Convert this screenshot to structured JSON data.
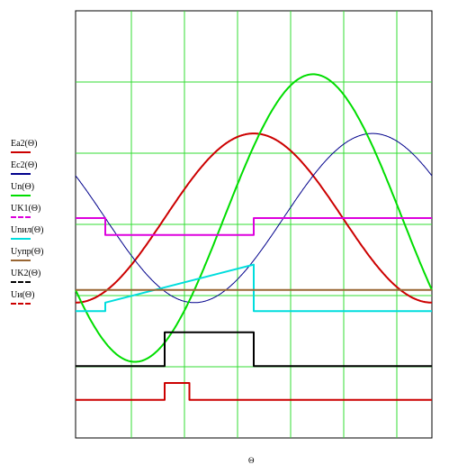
{
  "chart_data": {
    "type": "line",
    "xlabel": "Θ",
    "grid": true,
    "x_divisions": 6,
    "y_divisions": 6,
    "series": [
      {
        "name": "Ea2(Θ)",
        "color": "#cc0000",
        "style": "solid",
        "kind": "sine",
        "amp": 1.0,
        "phase_deg": -90,
        "offset": 0
      },
      {
        "name": "Ec2(Θ)",
        "color": "#00008b",
        "style": "solid",
        "kind": "sine",
        "amp": 1.0,
        "phase_deg": 150,
        "offset": 0
      },
      {
        "name": "Un(Θ)",
        "color": "#00dd00",
        "style": "solid",
        "kind": "sine",
        "amp": 1.7,
        "phase_deg": -150,
        "offset": 0
      },
      {
        "name": "UK1(Θ)",
        "color": "#dd00dd",
        "style": "dash-dot",
        "kind": "step",
        "points": [
          [
            0,
            0.0
          ],
          [
            90,
            0.0
          ],
          [
            90,
            -0.2
          ],
          [
            540,
            -0.2
          ],
          [
            540,
            0.0
          ],
          [
            1080,
            0.0
          ]
        ]
      },
      {
        "name": "Unил(Θ)",
        "color": "#00dddd",
        "style": "solid",
        "kind": "step",
        "points": [
          [
            0,
            -1.1
          ],
          [
            90,
            -1.1
          ],
          [
            90,
            -1.0
          ],
          [
            540,
            -0.55
          ],
          [
            540,
            -1.1
          ],
          [
            1080,
            -1.1
          ]
        ]
      },
      {
        "name": "Uyпр(Θ)",
        "color": "#996633",
        "style": "solid",
        "kind": "step",
        "points": [
          [
            0,
            -0.85
          ],
          [
            1080,
            -0.85
          ]
        ]
      },
      {
        "name": "UK2(Θ)",
        "color": "#000000",
        "style": "dashed",
        "kind": "step",
        "points": [
          [
            0,
            -1.75
          ],
          [
            270,
            -1.75
          ],
          [
            270,
            -1.35
          ],
          [
            540,
            -1.35
          ],
          [
            540,
            -1.75
          ],
          [
            1080,
            -1.75
          ]
        ]
      },
      {
        "name": "Uи(Θ)",
        "color": "#cc0000",
        "style": "dash-dot",
        "kind": "step",
        "points": [
          [
            0,
            -2.15
          ],
          [
            270,
            -2.15
          ],
          [
            270,
            -1.95
          ],
          [
            345,
            -1.95
          ],
          [
            345,
            -2.15
          ],
          [
            1080,
            -2.15
          ]
        ]
      }
    ]
  }
}
